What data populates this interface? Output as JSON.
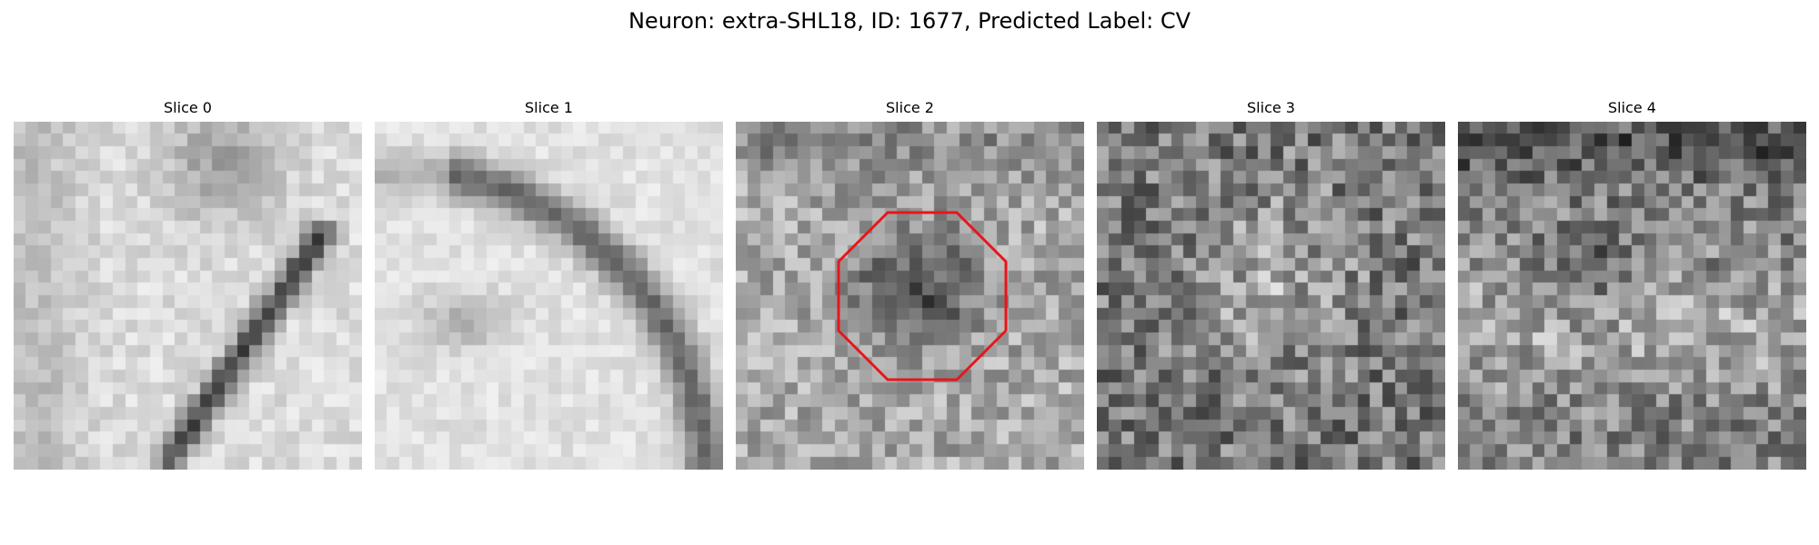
{
  "figure": {
    "title": "Neuron: extra-SHL18, ID: 1677, Predicted Label: CV"
  },
  "slices": [
    {
      "label": "Slice 0",
      "pattern": "bright-field-with-diagonal-dark-ridge"
    },
    {
      "label": "Slice 1",
      "pattern": "bright-field-with-dark-arc-top-right"
    },
    {
      "label": "Slice 2",
      "pattern": "noisy-gray-with-dark-center-blob",
      "roi": true
    },
    {
      "label": "Slice 3",
      "pattern": "dark-noisy-texture"
    },
    {
      "label": "Slice 4",
      "pattern": "dark-noisy-texture-with-mid-bright-band"
    }
  ],
  "colors": {
    "roi_outline": "#e8151b",
    "background": "#ffffff"
  },
  "image_grid_size": 28
}
